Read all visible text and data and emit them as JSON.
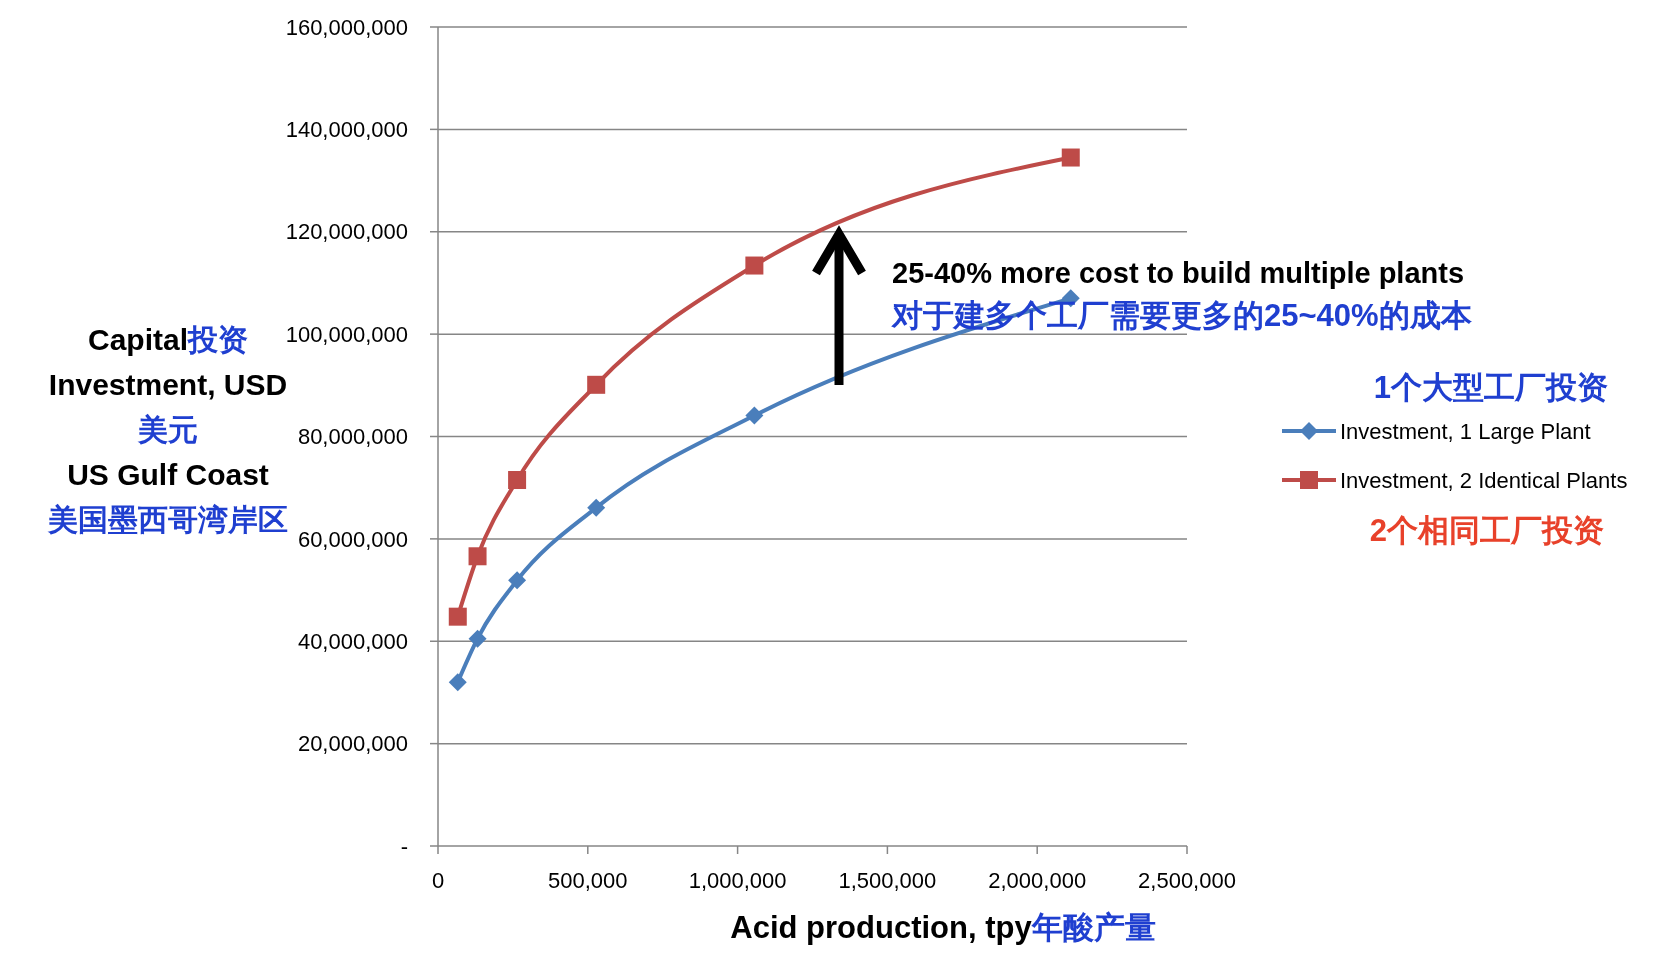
{
  "chart_data": {
    "type": "line",
    "xlabel": "Acid production, tpy年酸产量",
    "ylabel": "Capital投资\nInvestment, USD\n美元\nUS Gulf Coast\n美国墨西哥湾岸区",
    "annotations": [
      "25-40% more cost to build multiple plants",
      "对于建多个工厂需要更多的25~40%的成本",
      "1个大型工厂投资",
      "2个相同工厂投资"
    ],
    "series": [
      {
        "name": "Investment, 1 Large Plant",
        "color": "#4a7ebb",
        "marker": "diamond",
        "x": [
          66000,
          132000,
          264000,
          528000,
          1056000,
          2112000
        ],
        "values": [
          32000000,
          40500000,
          51900000,
          66100000,
          84100000,
          107000000
        ]
      },
      {
        "name": "Investment, 2 Identical Plants",
        "color": "#be4b48",
        "marker": "square",
        "x": [
          66000,
          132000,
          264000,
          528000,
          1056000,
          2112000
        ],
        "values": [
          44800000,
          56600000,
          71500000,
          90100000,
          113400000,
          134500000
        ]
      }
    ],
    "xlim": [
      0,
      2500000
    ],
    "xticks": [
      0,
      {
        "value": 500000,
        "label": "500,000"
      },
      {
        "value": 1000000,
        "label": "1,000,000"
      },
      {
        "value": 1500000,
        "label": "1,500,000"
      },
      {
        "value": 2000000,
        "label": "2,000,000"
      },
      {
        "value": 2500000,
        "label": "2,500,000"
      }
    ],
    "ylim": [
      0,
      160000000
    ],
    "yticks": [
      {
        "value": 0,
        "label": "-"
      },
      {
        "value": 20000000,
        "label": "20,000,000"
      },
      {
        "value": 40000000,
        "label": "40,000,000"
      },
      {
        "value": 60000000,
        "label": "60,000,000"
      },
      {
        "value": 80000000,
        "label": "80,000,000"
      },
      {
        "value": 100000000,
        "label": "100,000,000"
      },
      {
        "value": 120000000,
        "label": "120,000,000"
      },
      {
        "value": 140000000,
        "label": "140,000,000"
      },
      {
        "value": 160000000,
        "label": "160,000,000"
      }
    ],
    "grid": "y",
    "legend": "right",
    "line_style": "solid"
  }
}
